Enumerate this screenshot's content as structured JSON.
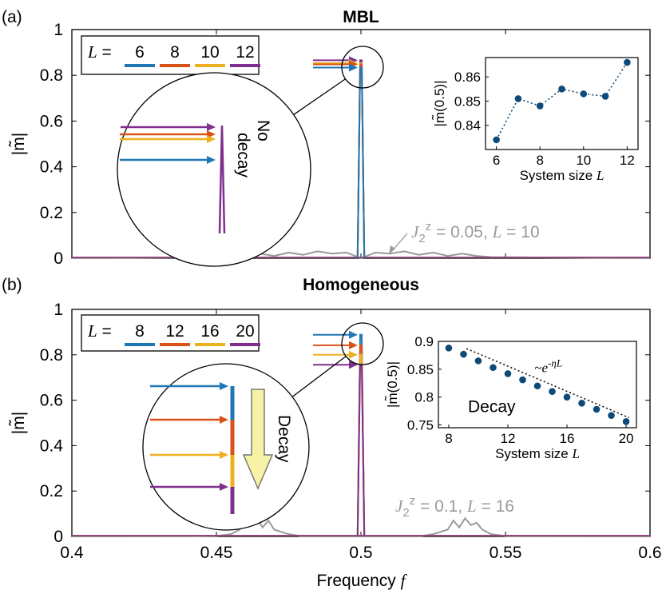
{
  "colors": {
    "blue": "#1f77b4",
    "orange": "#d95319",
    "yellow": "#edb120",
    "purple": "#7e2f8e",
    "gray": "#9a9a9a",
    "inset_marker": "#0e4a78",
    "arrow_fill": "#f7f3a6",
    "arrow_edge": "#777777"
  },
  "chart_data": [
    {
      "type": "line",
      "panel_label": "(a)",
      "title": "MBL",
      "xlabel": "Frequency",
      "xlabel_symbol": "f",
      "ylabel": "|m̃|",
      "xlim": [
        0.4,
        0.6
      ],
      "ylim": [
        0,
        1
      ],
      "xticks": [
        "0.4",
        "0.45",
        "0.5",
        "0.55",
        "0.6"
      ],
      "yticks": [
        "0",
        "0.2",
        "0.4",
        "0.6",
        "0.8",
        "1"
      ],
      "legend": {
        "prefix": "L =",
        "entries": [
          "6",
          "8",
          "10",
          "12"
        ]
      },
      "series": [
        {
          "name": "6",
          "color": "blue",
          "peak_f": 0.5,
          "peak": 0.834
        },
        {
          "name": "8",
          "color": "orange",
          "peak_f": 0.5,
          "peak": 0.848
        },
        {
          "name": "10",
          "color": "yellow",
          "peak_f": 0.5,
          "peak": 0.853
        },
        {
          "name": "12",
          "color": "purple",
          "peak_f": 0.5,
          "peak": 0.866
        }
      ],
      "reference": {
        "label_pre": "J",
        "label_sub": "2",
        "label_sup": "z",
        "label_mid": " = 0.05, ",
        "label_L": "L",
        "label_end": " = 10",
        "color": "gray",
        "x": [
          0.4,
          0.455,
          0.46,
          0.465,
          0.47,
          0.475,
          0.48,
          0.485,
          0.49,
          0.495,
          0.5,
          0.505,
          0.51,
          0.515,
          0.52,
          0.525,
          0.53,
          0.535,
          0.54,
          0.545,
          0.6
        ],
        "y": [
          0,
          0.005,
          0.01,
          0.02,
          0.01,
          0.025,
          0.015,
          0.03,
          0.02,
          0.025,
          0.0,
          0.025,
          0.02,
          0.03,
          0.015,
          0.025,
          0.01,
          0.02,
          0.01,
          0.005,
          0
        ]
      },
      "annotation": "No decay",
      "inset": {
        "type": "line",
        "xlabel": "System size",
        "xlabel_symbol": "L",
        "ylabel": "|m̃(0.5)|",
        "xlim": [
          5.5,
          12.5
        ],
        "ylim": [
          0.83,
          0.868
        ],
        "xticks": [
          6,
          8,
          10,
          12
        ],
        "yticks": [
          0.84,
          0.85,
          0.86
        ],
        "ytick_labels": [
          "0.84",
          "0.85",
          "0.86"
        ],
        "x": [
          6,
          7,
          8,
          9,
          10,
          11,
          12
        ],
        "y": [
          0.834,
          0.851,
          0.848,
          0.855,
          0.853,
          0.852,
          0.866
        ]
      }
    },
    {
      "type": "line",
      "panel_label": "(b)",
      "title": "Homogeneous",
      "xlabel": "Frequency",
      "xlabel_symbol": "f",
      "ylabel": "|m̃|",
      "xlim": [
        0.4,
        0.6
      ],
      "ylim": [
        0,
        1
      ],
      "xticks": [
        "0.4",
        "0.45",
        "0.5",
        "0.55",
        "0.6"
      ],
      "yticks": [
        "0",
        "0.2",
        "0.4",
        "0.6",
        "0.8",
        "1"
      ],
      "legend": {
        "prefix": "L =",
        "entries": [
          "8",
          "12",
          "16",
          "20"
        ]
      },
      "series": [
        {
          "name": "8",
          "color": "blue",
          "peak_f": 0.5,
          "peak": 0.888
        },
        {
          "name": "12",
          "color": "orange",
          "peak_f": 0.5,
          "peak": 0.842
        },
        {
          "name": "16",
          "color": "yellow",
          "peak_f": 0.5,
          "peak": 0.8
        },
        {
          "name": "20",
          "color": "purple",
          "peak_f": 0.5,
          "peak": 0.756
        }
      ],
      "reference": {
        "label_pre": "J",
        "label_sub": "2",
        "label_sup": "z",
        "label_mid": " = 0.1, ",
        "label_L": "L",
        "label_end": " = 16",
        "color": "gray",
        "x": [
          0.4,
          0.45,
          0.455,
          0.458,
          0.46,
          0.462,
          0.464,
          0.466,
          0.468,
          0.47,
          0.475,
          0.48,
          0.52,
          0.525,
          0.53,
          0.532,
          0.534,
          0.536,
          0.538,
          0.54,
          0.542,
          0.545,
          0.55,
          0.6
        ],
        "y": [
          0,
          0.002,
          0.01,
          0.03,
          0.06,
          0.05,
          0.08,
          0.04,
          0.07,
          0.03,
          0.01,
          0.0,
          0.0,
          0.01,
          0.03,
          0.07,
          0.04,
          0.08,
          0.05,
          0.06,
          0.03,
          0.01,
          0.002,
          0
        ]
      },
      "annotation": "Decay",
      "inset": {
        "type": "scatter",
        "xlabel": "System size",
        "xlabel_symbol": "L",
        "ylabel": "|m̃(0.5)|",
        "xlim": [
          7.3,
          20.7
        ],
        "ylim": [
          0.745,
          0.9
        ],
        "xticks": [
          8,
          12,
          16,
          20
        ],
        "yticks": [
          0.75,
          0.8,
          0.85,
          0.9
        ],
        "ytick_labels": [
          "0.75",
          "0.8",
          "0.85",
          "0.9"
        ],
        "x": [
          8,
          9,
          10,
          11,
          12,
          13,
          14,
          15,
          16,
          17,
          18,
          19,
          20
        ],
        "y": [
          0.888,
          0.877,
          0.865,
          0.853,
          0.842,
          0.831,
          0.82,
          0.81,
          0.8,
          0.789,
          0.778,
          0.767,
          0.756
        ],
        "fit_label": "~e",
        "fit_exponent": "-ηL",
        "annotation": "Decay"
      }
    }
  ]
}
